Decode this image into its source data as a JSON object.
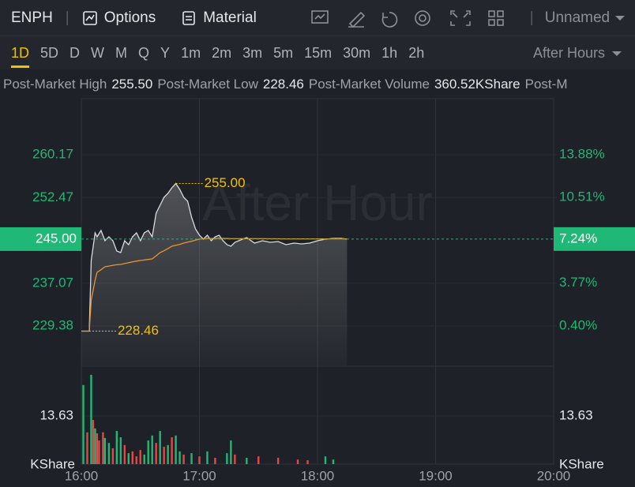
{
  "header": {
    "symbol": "ENPH",
    "menu": [
      "Options",
      "Material"
    ],
    "layout_name": "Unnamed"
  },
  "timeframes": {
    "items": [
      "1D",
      "5D",
      "D",
      "W",
      "M",
      "Q",
      "Y",
      "1m",
      "2m",
      "3m",
      "5m",
      "15m",
      "30m",
      "1h",
      "2h"
    ],
    "active": 0,
    "session": "After Hours"
  },
  "stats": [
    {
      "label": "Post-Market High",
      "value": "255.50"
    },
    {
      "label": "Post-Market Low",
      "value": "228.46"
    },
    {
      "label": "Post-Market Volume",
      "value": "360.52KShare"
    },
    {
      "label": "Post-M"
    }
  ],
  "chart_data": [
    {
      "type": "line",
      "watermark": "After Hour",
      "x": [
        "16:00",
        "16:04",
        "16:05",
        "16:07",
        "16:08",
        "16:10",
        "16:12",
        "16:14",
        "16:16",
        "16:18",
        "16:20",
        "16:22",
        "16:24",
        "16:26",
        "16:28",
        "16:30",
        "16:32",
        "16:34",
        "16:36",
        "16:38",
        "16:40",
        "16:42",
        "16:44",
        "16:46",
        "16:48",
        "16:50",
        "16:52",
        "16:54",
        "16:56",
        "16:58",
        "17:00",
        "17:02",
        "17:04",
        "17:06",
        "17:08",
        "17:10",
        "17:12",
        "17:14",
        "17:16",
        "17:18",
        "17:20",
        "17:24",
        "17:28",
        "17:32",
        "17:36",
        "17:40",
        "17:44",
        "17:48",
        "17:52",
        "17:56",
        "18:00",
        "18:04",
        "18:08",
        "18:12",
        "18:15"
      ],
      "series": [
        {
          "color": "#d9dbe0",
          "values": [
            228.46,
            228.46,
            241.16,
            246.12,
            245.41,
            246.55,
            244.7,
            245.41,
            244.7,
            242.86,
            242.58,
            244.7,
            243.99,
            245.41,
            246.12,
            244.7,
            246.12,
            246.55,
            245.41,
            249.67,
            251.09,
            252.51,
            253.22,
            254.21,
            255.0,
            253.93,
            252.51,
            251.8,
            248.96,
            246.83,
            245.7,
            244.99,
            245.7,
            244.7,
            245.41,
            245.7,
            244.7,
            243.99,
            243.71,
            244.42,
            244.7,
            245.27,
            244.28,
            244.7,
            244.42,
            244.56,
            243.99,
            244.28,
            244.14,
            244.28,
            244.7,
            244.99,
            245.13,
            245.13,
            245.0
          ]
        },
        {
          "color": "#e8962e",
          "values": [
            228.46,
            228.46,
            234.06,
            237.61,
            239.03,
            239.5,
            240.02,
            240.15,
            240.3,
            240.4,
            240.45,
            240.6,
            240.75,
            240.9,
            241.05,
            241.16,
            241.25,
            241.35,
            241.44,
            242.0,
            242.58,
            242.9,
            243.3,
            243.71,
            243.9,
            244.05,
            244.28,
            244.45,
            244.6,
            244.8,
            244.99,
            245.05,
            245.1,
            245.12,
            245.13,
            245.13,
            245.13,
            245.1,
            245.08,
            245.08,
            245.08,
            245.08,
            245.07,
            245.07,
            245.06,
            245.06,
            245.05,
            245.05,
            245.04,
            245.04,
            245.04,
            245.04,
            245.04,
            245.04,
            245.04
          ]
        }
      ],
      "xlim": [
        "16:00",
        "20:00"
      ],
      "xticks": [
        "16:00",
        "17:00",
        "18:00",
        "19:00",
        "20:00"
      ],
      "ylim": [
        222.29,
        267.69
      ],
      "yticks": [
        260.17,
        252.47,
        237.07,
        229.38
      ],
      "y2lim": [
        -2.71,
        17.17
      ],
      "y2ticks": [
        {
          "value": 13.88,
          "label": "13.88%"
        },
        {
          "value": 10.51,
          "label": "10.51%"
        },
        {
          "value": 3.77,
          "label": "3.77%"
        },
        {
          "value": 0.4,
          "label": "0.40%"
        }
      ],
      "last_price": {
        "value": 245,
        "label": "245.00"
      },
      "last_change": {
        "value": 7.24,
        "label": "7.24%"
      },
      "high": {
        "x": "16:48",
        "value": 255,
        "label": "255.00"
      },
      "low": {
        "x": "16:04",
        "value": 228.46,
        "label": "228.46"
      },
      "grid": true
    },
    {
      "type": "bar",
      "unit": "KShare",
      "x": [
        "16:01",
        "16:03",
        "16:05",
        "16:06",
        "16:07",
        "16:08",
        "16:09",
        "16:11",
        "16:12",
        "16:14",
        "16:16",
        "16:18",
        "16:20",
        "16:22",
        "16:24",
        "16:26",
        "16:28",
        "16:30",
        "16:32",
        "16:34",
        "16:36",
        "16:38",
        "16:40",
        "16:42",
        "16:44",
        "16:46",
        "16:48",
        "16:50",
        "16:52",
        "16:56",
        "17:00",
        "17:04",
        "17:08",
        "17:14",
        "17:16",
        "17:18",
        "17:24",
        "17:30",
        "17:40",
        "17:50",
        "17:55",
        "18:04",
        "18:08"
      ],
      "values": [
        22.4,
        9.0,
        25.3,
        12.5,
        10.1,
        8.7,
        6.7,
        9.0,
        7.4,
        6.0,
        4.5,
        9.4,
        7.6,
        5.4,
        3.1,
        3.6,
        2.2,
        4.0,
        2.7,
        6.7,
        8.1,
        6.0,
        9.4,
        4.9,
        5.4,
        7.6,
        8.1,
        3.6,
        2.7,
        3.1,
        2.2,
        3.6,
        1.8,
        3.1,
        6.7,
        2.7,
        1.8,
        2.2,
        1.8,
        1.3,
        1.1,
        2.2,
        1.3
      ],
      "colors": [
        "#1fb877",
        "#e0494a",
        "#1fb877",
        "#e0494a",
        "#1fb877",
        "#e0494a",
        "#e0494a",
        "#e0494a",
        "#1fb877",
        "#1fb877",
        "#e0494a",
        "#1fb877",
        "#1fb877",
        "#e0494a",
        "#1fb877",
        "#e0494a",
        "#e0494a",
        "#e0494a",
        "#1fb877",
        "#1fb877",
        "#1fb877",
        "#e0494a",
        "#1fb877",
        "#e0494a",
        "#1fb877",
        "#e0494a",
        "#1fb877",
        "#1fb877",
        "#e0494a",
        "#1fb877",
        "#e0494a",
        "#1fb877",
        "#e0494a",
        "#1fb877",
        "#1fb877",
        "#e0494a",
        "#1fb877",
        "#e0494a",
        "#e0494a",
        "#e0494a",
        "#e0494a",
        "#1fb877",
        "#1fb877"
      ],
      "ylim": [
        0,
        27.5
      ],
      "yticks": [
        13.63
      ]
    }
  ]
}
